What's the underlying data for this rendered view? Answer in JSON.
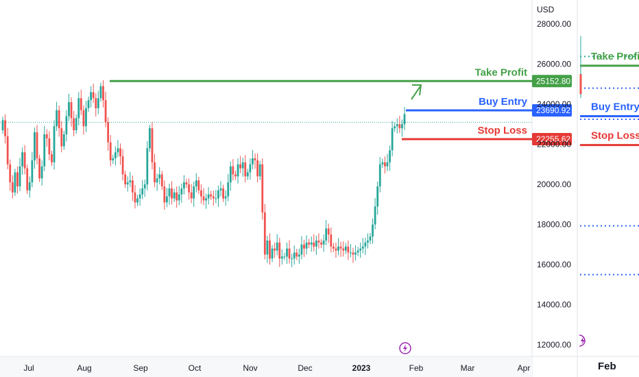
{
  "chart_data": {
    "type": "candlestick",
    "currency": "USD",
    "y_ticks": [
      28000,
      26000,
      24000,
      22000,
      20000,
      18000,
      16000,
      14000,
      12000
    ],
    "y_tick_labels": [
      "28000.00",
      "26000.00",
      "24000.00",
      "22000.00",
      "20000.00",
      "18000.00",
      "16000.00",
      "14000.00",
      "12000.00"
    ],
    "ylim": [
      11600,
      29200
    ],
    "x_labels": [
      "Jul",
      "Aug",
      "Sep",
      "Oct",
      "Nov",
      "Dec",
      "2023",
      "Feb",
      "Mar",
      "Apr"
    ],
    "levels": [
      {
        "name": "Take Profit",
        "value": 25152.8,
        "tag": "25152.80",
        "color": "#43a047"
      },
      {
        "name": "Buy Entry",
        "value": 23690.92,
        "tag": "23690.92",
        "color": "#2962ff"
      },
      {
        "name": "Stop Loss",
        "value": 22255.62,
        "tag": "22255.62",
        "color": "#e53935"
      }
    ],
    "current_price": 23100,
    "closes": [
      23200,
      22400,
      21000,
      20100,
      19600,
      20600,
      19900,
      20900,
      21600,
      20800,
      19700,
      20100,
      21200,
      22600,
      21300,
      20300,
      20900,
      22500,
      22300,
      21500,
      21100,
      22900,
      23700,
      22800,
      21900,
      22500,
      23400,
      24100,
      23300,
      22700,
      23300,
      24300,
      23700,
      22900,
      23800,
      24200,
      24600,
      24300,
      23800,
      24300,
      24900,
      24200,
      23100,
      22100,
      21200,
      21300,
      21600,
      21800,
      21400,
      20500,
      20000,
      20100,
      20200,
      19600,
      19100,
      19300,
      19500,
      19800,
      20000,
      21800,
      22800,
      21100,
      20100,
      20300,
      20500,
      19900,
      19100,
      19400,
      19800,
      19300,
      19600,
      19200,
      19500,
      19800,
      20100,
      20000,
      19600,
      19300,
      19900,
      20200,
      19700,
      19400,
      19200,
      19300,
      19500,
      19400,
      19300,
      19300,
      19700,
      19800,
      19300,
      19400,
      20100,
      20900,
      20500,
      20400,
      21000,
      20800,
      21100,
      20400,
      20600,
      21000,
      21300,
      21200,
      20400,
      21000,
      18600,
      16500,
      17200,
      16300,
      16800,
      16700,
      17100,
      16300,
      16400,
      16400,
      16800,
      16300,
      16300,
      16600,
      16400,
      16500,
      17000,
      16800,
      17100,
      17000,
      17100,
      16900,
      17200,
      17100,
      17000,
      17200,
      17800,
      17500,
      16900,
      16800,
      16700,
      16900,
      16800,
      16700,
      16900,
      16600,
      16600,
      16500,
      16600,
      16700,
      16800,
      16900,
      17100,
      17200,
      17400,
      18000,
      18900,
      19900,
      21000,
      21100,
      20900,
      21100,
      21700,
      22800,
      22900,
      23000,
      22800,
      23000,
      23500
    ],
    "bands": [
      {
        "label": "Take Profit",
        "value": 25920
      },
      {
        "label": "Buy Entry",
        "value": 23400
      },
      {
        "label": "Stop Loss",
        "value": 21960
      }
    ],
    "dotted_levels": [
      26380,
      24800,
      23250,
      17930,
      15500
    ]
  },
  "ui": {
    "currency_label": "USD",
    "right_panel_month": "Feb",
    "colors": {
      "up": "#26a69a",
      "down": "#ef5350",
      "up_bright": "#089981",
      "accent_purple": "#9c27b0"
    },
    "icons": [
      "lightning-icon",
      "lightning-icon-panel"
    ]
  }
}
